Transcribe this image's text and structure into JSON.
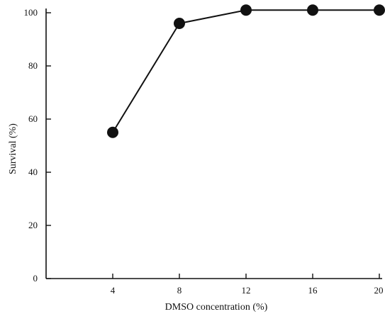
{
  "chart_data": {
    "type": "line",
    "title": "",
    "xlabel": "DMSO concentration (%)",
    "ylabel": "Survival (%)",
    "x": [
      4,
      8,
      12,
      16,
      20
    ],
    "x_ticks": [
      "4",
      "8",
      "12",
      "16",
      "20"
    ],
    "y_ticks": [
      "0",
      "20",
      "40",
      "60",
      "80",
      "100"
    ],
    "xlim": [
      0,
      20
    ],
    "ylim": [
      0,
      100
    ],
    "grid": false,
    "series": [
      {
        "values": [
          55,
          96,
          101,
          101,
          101
        ]
      }
    ],
    "colors": {
      "line": "#111111",
      "marker": "#111111",
      "axis": "#111111"
    }
  }
}
